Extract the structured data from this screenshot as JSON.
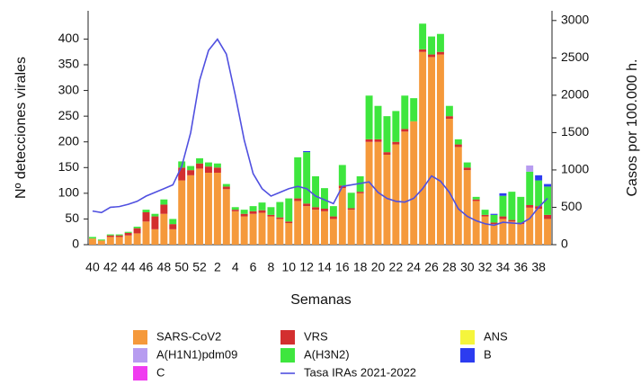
{
  "chart_data": {
    "type": "bar",
    "stacked": true,
    "x_label": "Semanas",
    "y_label": "Nº detecciones virales",
    "y2_label": "Casos por 100.000 h.",
    "categories": [
      "40",
      null,
      "42",
      null,
      "44",
      null,
      "46",
      null,
      "48",
      null,
      "50",
      null,
      "52",
      null,
      "2",
      null,
      "4",
      null,
      "6",
      null,
      "8",
      null,
      "10",
      null,
      "12",
      null,
      "14",
      null,
      "16",
      null,
      "18",
      null,
      "20",
      null,
      "22",
      null,
      "24",
      null,
      "26",
      null,
      "28",
      null,
      "30",
      null,
      "32",
      null,
      "34",
      null,
      "36",
      null,
      "38",
      null
    ],
    "ylim": [
      0,
      455
    ],
    "yticks": [
      0,
      50,
      100,
      150,
      200,
      250,
      300,
      350,
      400
    ],
    "y2lim": [
      0,
      3130
    ],
    "y2ticks": [
      0,
      500,
      1000,
      1500,
      2000,
      2500,
      3000
    ],
    "series": [
      {
        "name": "SARS-CoV2",
        "color": "#f5993b",
        "values": [
          12,
          8,
          15,
          15,
          18,
          22,
          45,
          30,
          60,
          30,
          125,
          135,
          148,
          140,
          140,
          108,
          65,
          55,
          60,
          62,
          55,
          50,
          42,
          85,
          75,
          68,
          65,
          50,
          110,
          68,
          100,
          200,
          200,
          175,
          195,
          220,
          240,
          375,
          365,
          370,
          245,
          190,
          145,
          85,
          55,
          40,
          50,
          45,
          40,
          72,
          70,
          50
        ]
      },
      {
        "name": "VRS",
        "color": "#d32f2f",
        "values": [
          0,
          0,
          3,
          3,
          5,
          10,
          18,
          25,
          18,
          10,
          25,
          10,
          10,
          12,
          10,
          5,
          3,
          5,
          5,
          5,
          3,
          3,
          3,
          5,
          5,
          5,
          5,
          5,
          5,
          3,
          3,
          5,
          5,
          5,
          5,
          5,
          0,
          5,
          5,
          5,
          5,
          5,
          5,
          3,
          3,
          3,
          5,
          3,
          3,
          5,
          5,
          8
        ]
      },
      {
        "name": "A(H3N2)",
        "color": "#3ee63e",
        "values": [
          3,
          2,
          2,
          2,
          2,
          3,
          5,
          5,
          10,
          10,
          12,
          8,
          10,
          8,
          8,
          5,
          5,
          8,
          10,
          15,
          15,
          30,
          45,
          80,
          100,
          60,
          40,
          20,
          40,
          30,
          30,
          85,
          65,
          70,
          60,
          65,
          45,
          50,
          35,
          35,
          20,
          10,
          10,
          5,
          10,
          15,
          40,
          55,
          50,
          65,
          50,
          55
        ]
      },
      {
        "name": "A(H1N1)pdm09",
        "color": "#b79cf0",
        "values": [
          0,
          0,
          0,
          0,
          0,
          0,
          0,
          0,
          0,
          0,
          0,
          0,
          0,
          0,
          0,
          0,
          0,
          0,
          0,
          0,
          0,
          0,
          0,
          0,
          0,
          0,
          0,
          0,
          0,
          0,
          0,
          0,
          0,
          0,
          0,
          0,
          0,
          0,
          0,
          0,
          0,
          0,
          0,
          0,
          0,
          0,
          0,
          0,
          0,
          12,
          0,
          0
        ]
      },
      {
        "name": "C",
        "color": "#f03cf0",
        "values": [
          0,
          0,
          0,
          0,
          0,
          0,
          0,
          0,
          0,
          0,
          0,
          0,
          0,
          0,
          0,
          0,
          0,
          0,
          0,
          0,
          0,
          0,
          0,
          0,
          0,
          0,
          0,
          0,
          0,
          0,
          0,
          0,
          0,
          0,
          0,
          0,
          0,
          0,
          0,
          0,
          0,
          0,
          0,
          0,
          0,
          0,
          0,
          0,
          0,
          0,
          0,
          0
        ]
      },
      {
        "name": "ANS",
        "color": "#f5f53c",
        "values": [
          0,
          0,
          0,
          0,
          0,
          0,
          0,
          0,
          0,
          0,
          0,
          0,
          0,
          0,
          0,
          0,
          0,
          0,
          0,
          0,
          0,
          0,
          0,
          0,
          0,
          0,
          0,
          0,
          0,
          0,
          0,
          0,
          0,
          0,
          0,
          0,
          0,
          0,
          0,
          0,
          0,
          0,
          0,
          0,
          0,
          0,
          0,
          0,
          0,
          0,
          0,
          0
        ]
      },
      {
        "name": "B",
        "color": "#2c3cf0",
        "values": [
          0,
          0,
          0,
          0,
          0,
          0,
          0,
          0,
          0,
          0,
          0,
          0,
          0,
          0,
          0,
          0,
          0,
          0,
          0,
          0,
          0,
          0,
          0,
          0,
          2,
          0,
          0,
          0,
          0,
          0,
          0,
          0,
          0,
          0,
          0,
          0,
          0,
          0,
          0,
          0,
          0,
          0,
          0,
          0,
          0,
          2,
          5,
          0,
          0,
          0,
          10,
          5
        ]
      },
      {
        "name": "Tasa IRAs 2021-2022",
        "type": "line",
        "axis": "y2",
        "color": "#5050e0",
        "values": [
          450,
          430,
          500,
          510,
          540,
          580,
          650,
          700,
          750,
          800,
          1050,
          1500,
          2200,
          2600,
          2750,
          2550,
          2000,
          1400,
          950,
          750,
          650,
          700,
          750,
          780,
          750,
          650,
          600,
          550,
          780,
          800,
          820,
          840,
          700,
          620,
          580,
          570,
          620,
          750,
          920,
          850,
          700,
          480,
          380,
          320,
          280,
          260,
          300,
          290,
          280,
          350,
          500,
          620
        ]
      }
    ]
  }
}
